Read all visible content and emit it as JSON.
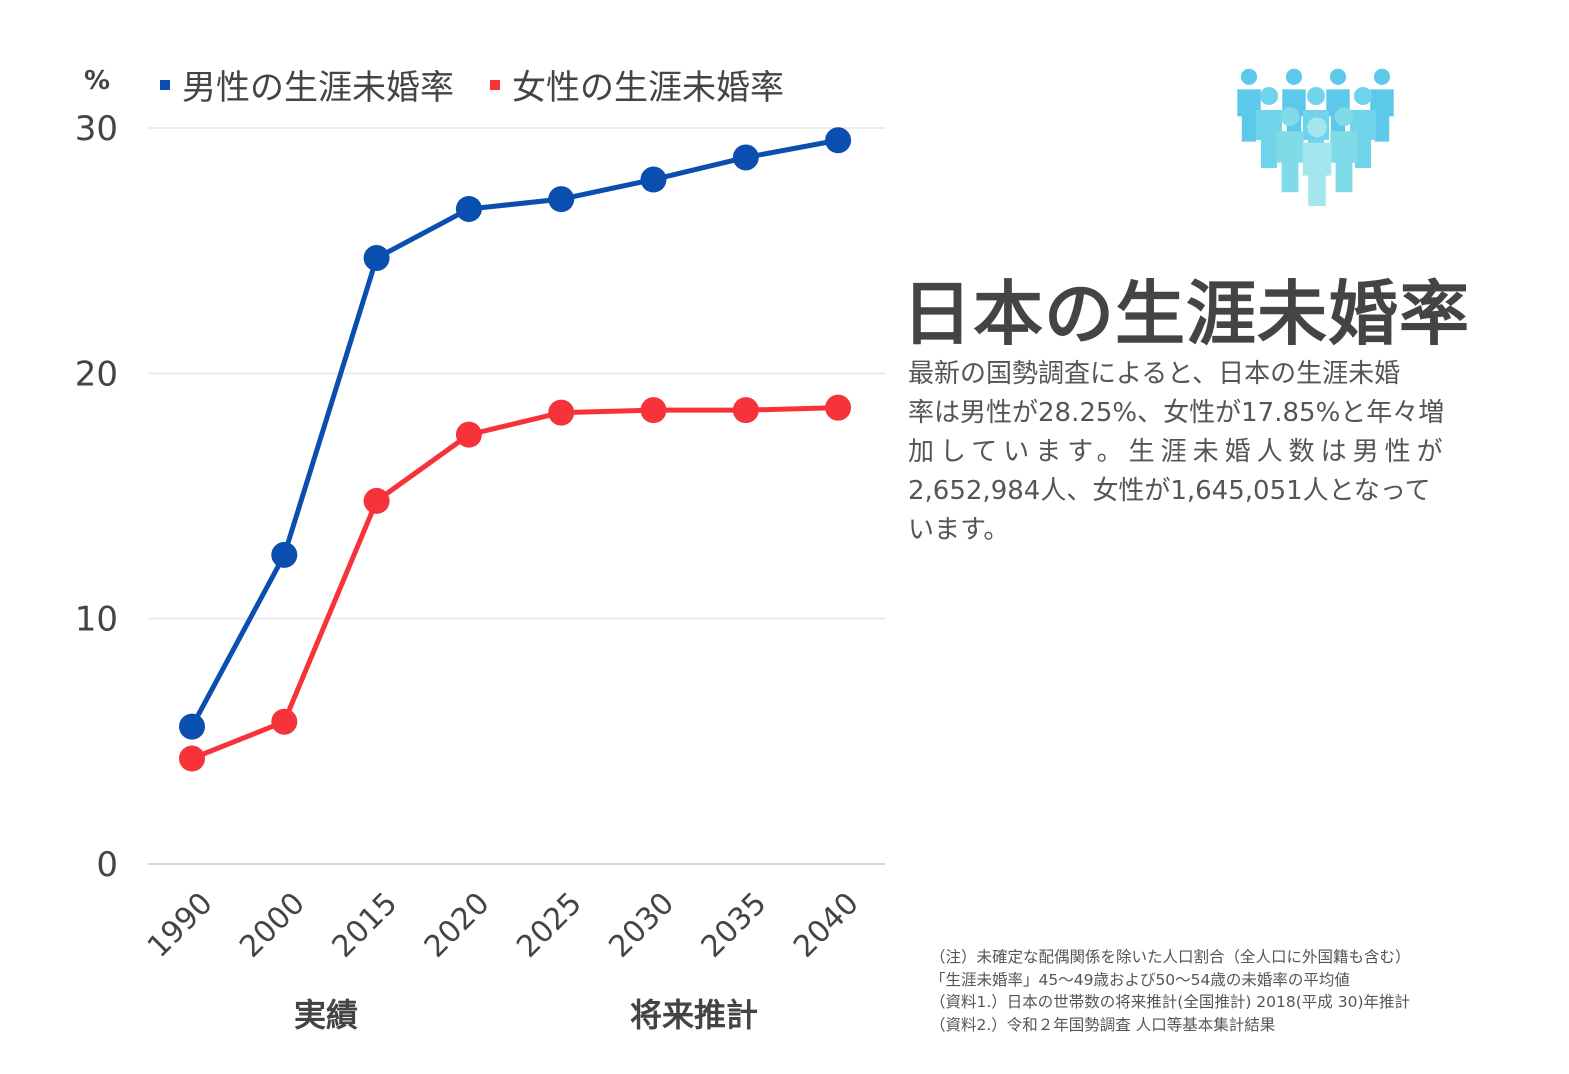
{
  "chart_data": {
    "type": "line",
    "categories": [
      "1990",
      "2000",
      "2015",
      "2020",
      "2025",
      "2030",
      "2035",
      "2040"
    ],
    "series": [
      {
        "name": "男性の生涯未婚率",
        "color": "#0a4fb0",
        "values": [
          5.6,
          12.6,
          24.7,
          26.7,
          27.1,
          27.9,
          28.8,
          29.5
        ]
      },
      {
        "name": "女性の生涯未婚率",
        "color": "#f53339",
        "values": [
          4.3,
          5.8,
          14.8,
          17.5,
          18.4,
          18.5,
          18.5,
          18.6
        ]
      }
    ],
    "ylim": [
      0,
      30
    ],
    "yticks": [
      "0",
      "10",
      "20",
      "30"
    ],
    "ylabel": "%",
    "grid": true,
    "legend": "top",
    "x_groups": [
      "実績",
      "将来推計"
    ]
  },
  "title": "日本の生涯未婚率",
  "description_lines": [
    "最新の国勢調査によると、日本の生涯未婚",
    "率は男性が28.25%、女性が17.85%と年々増",
    "加しています。生涯未婚人数は男性が",
    "2,652,984人、女性が1,645,051人となって",
    "います。"
  ],
  "notes": [
    "（注）未確定な配偶関係を除いた人口割合（全人口に外国籍も含む）",
    "「生涯未婚率」45〜49歳および50〜54歳の未婚率の平均値",
    "（資料1.）日本の世帯数の将来推計(全国推計) 2018(平成 30)年推計",
    "（資料2.）令和２年国勢調査 人口等基本集計結果"
  ],
  "icon": "people-group-icon",
  "icon_color": "#4fc3e0"
}
